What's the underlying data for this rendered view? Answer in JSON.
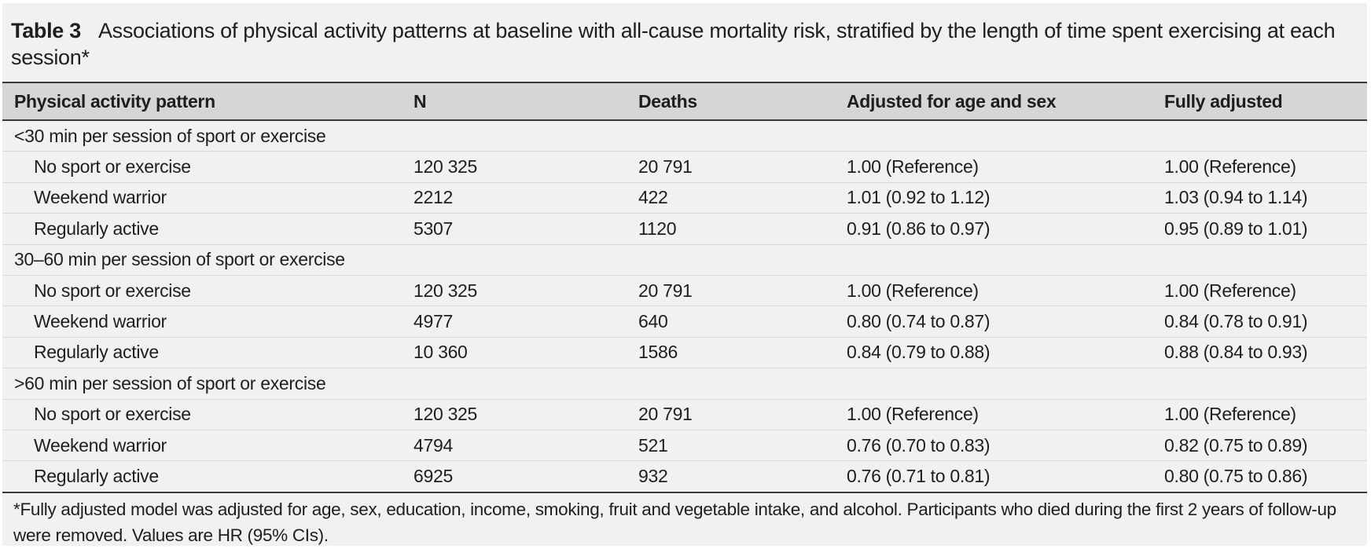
{
  "table": {
    "label": "Table 3",
    "title": "Associations of physical activity patterns at baseline with all-cause mortality risk, stratified by the length of time spent exercising at each session*",
    "headers": [
      "Physical activity pattern",
      "N",
      "Deaths",
      "Adjusted for age and sex",
      "Fully adjusted"
    ],
    "groups": [
      {
        "label": "<30 min per session of sport or exercise",
        "rows": [
          [
            "No sport or exercise",
            "120 325",
            "20 791",
            "1.00 (Reference)",
            "1.00 (Reference)"
          ],
          [
            "Weekend warrior",
            "2212",
            "422",
            "1.01 (0.92 to 1.12)",
            "1.03 (0.94 to 1.14)"
          ],
          [
            "Regularly active",
            "5307",
            "1120",
            "0.91 (0.86 to 0.97)",
            "0.95 (0.89 to 1.01)"
          ]
        ]
      },
      {
        "label": "30–60 min per session of sport or exercise",
        "rows": [
          [
            "No sport or exercise",
            "120 325",
            "20 791",
            "1.00 (Reference)",
            "1.00 (Reference)"
          ],
          [
            "Weekend warrior",
            "4977",
            "640",
            "0.80 (0.74 to 0.87)",
            "0.84 (0.78 to 0.91)"
          ],
          [
            "Regularly active",
            "10 360",
            "1586",
            "0.84 (0.79 to 0.88)",
            "0.88 (0.84 to 0.93)"
          ]
        ]
      },
      {
        "label": ">60 min per session of sport or exercise",
        "rows": [
          [
            "No sport or exercise",
            "120 325",
            "20 791",
            "1.00 (Reference)",
            "1.00 (Reference)"
          ],
          [
            "Weekend warrior",
            "4794",
            "521",
            "0.76 (0.70 to 0.83)",
            "0.82 (0.75 to 0.89)"
          ],
          [
            "Regularly active",
            "6925",
            "932",
            "0.76 (0.71 to 0.81)",
            "0.80 (0.75 to 0.86)"
          ]
        ]
      }
    ],
    "footnote": "*Fully adjusted model was adjusted for age, sex, education, income, smoking, fruit and vegetable intake, and alcohol. Participants who died during the first 2 years of follow-up were removed. Values are HR (95% CIs)."
  }
}
